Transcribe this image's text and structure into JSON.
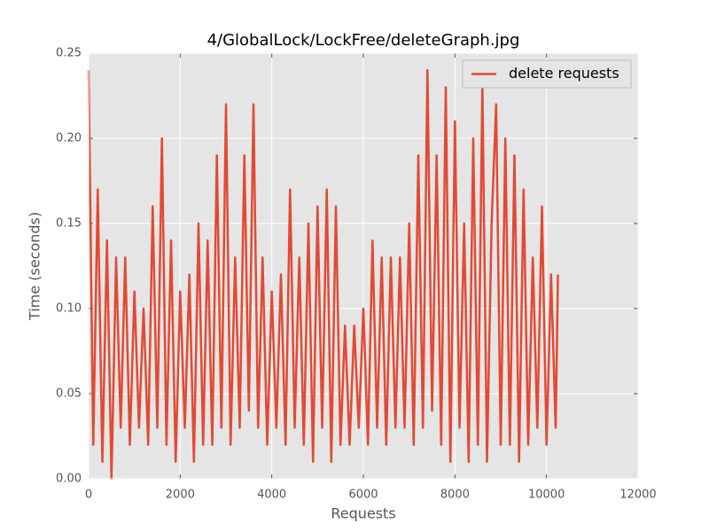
{
  "chart_data": {
    "type": "line",
    "title": "4/GlobalLock/LockFree/deleteGraph.jpg",
    "x_label": "Requests",
    "y_label": "Time (seconds)",
    "x": [
      0,
      100,
      200,
      300,
      400,
      500,
      600,
      700,
      800,
      900,
      1000,
      1100,
      1200,
      1300,
      1400,
      1500,
      1600,
      1700,
      1800,
      1900,
      2000,
      2100,
      2200,
      2300,
      2400,
      2500,
      2600,
      2700,
      2800,
      2900,
      3000,
      3100,
      3200,
      3300,
      3400,
      3500,
      3600,
      3700,
      3800,
      3900,
      4000,
      4100,
      4200,
      4300,
      4400,
      4500,
      4600,
      4700,
      4800,
      4900,
      5000,
      5100,
      5200,
      5300,
      5400,
      5500,
      5600,
      5700,
      5800,
      5900,
      6000,
      6100,
      6200,
      6300,
      6400,
      6500,
      6600,
      6700,
      6800,
      6900,
      7000,
      7100,
      7200,
      7300,
      7400,
      7500,
      7600,
      7700,
      7800,
      7900,
      8000,
      8100,
      8200,
      8300,
      8400,
      8500,
      8600,
      8700,
      8800,
      8900,
      9000,
      9100,
      9200,
      9300,
      9400,
      9500,
      9600,
      9700,
      9800,
      9900,
      10000,
      10100,
      10200,
      10250
    ],
    "series": [
      {
        "name": "delete requests",
        "color": "#e24a33",
        "values": [
          0.24,
          0.02,
          0.17,
          0.01,
          0.14,
          0.0,
          0.13,
          0.03,
          0.13,
          0.02,
          0.11,
          0.03,
          0.1,
          0.02,
          0.16,
          0.03,
          0.2,
          0.02,
          0.14,
          0.01,
          0.11,
          0.03,
          0.12,
          0.01,
          0.15,
          0.02,
          0.14,
          0.02,
          0.19,
          0.03,
          0.22,
          0.02,
          0.13,
          0.03,
          0.19,
          0.04,
          0.22,
          0.03,
          0.13,
          0.02,
          0.11,
          0.03,
          0.12,
          0.02,
          0.17,
          0.03,
          0.13,
          0.02,
          0.15,
          0.01,
          0.16,
          0.03,
          0.17,
          0.01,
          0.16,
          0.02,
          0.09,
          0.02,
          0.09,
          0.03,
          0.1,
          0.02,
          0.14,
          0.03,
          0.13,
          0.02,
          0.13,
          0.03,
          0.13,
          0.03,
          0.15,
          0.02,
          0.19,
          0.03,
          0.24,
          0.04,
          0.19,
          0.02,
          0.23,
          0.01,
          0.21,
          0.03,
          0.15,
          0.01,
          0.2,
          0.02,
          0.23,
          0.01,
          0.15,
          0.22,
          0.02,
          0.2,
          0.02,
          0.19,
          0.01,
          0.17,
          0.02,
          0.13,
          0.03,
          0.16,
          0.02,
          0.12,
          0.03,
          0.12
        ]
      }
    ],
    "xlim": [
      0,
      12000
    ],
    "xticks": [
      0,
      2000,
      4000,
      6000,
      8000,
      10000,
      12000
    ],
    "ylim": [
      0,
      0.25
    ],
    "yticks": [
      {
        "value": 0,
        "label": "0.00"
      },
      {
        "value": 0.05,
        "label": "0.05"
      },
      {
        "value": 0.1,
        "label": "0.10"
      },
      {
        "value": 0.15,
        "label": "0.15"
      },
      {
        "value": 0.2,
        "label": "0.20"
      },
      {
        "value": 0.25,
        "label": "0.25"
      }
    ],
    "grid": true,
    "legend": "upper right"
  }
}
